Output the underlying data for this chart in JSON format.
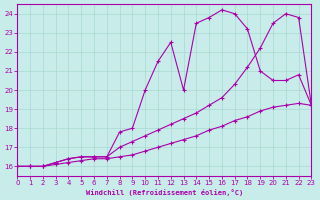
{
  "xlabel": "Windchill (Refroidissement éolien,°C)",
  "background_color": "#c8ecea",
  "grid_color": "#a8d8d0",
  "line_color": "#aa00aa",
  "marker": "+",
  "xlim": [
    0,
    23
  ],
  "ylim": [
    15.5,
    24.5
  ],
  "xticks": [
    0,
    1,
    2,
    3,
    4,
    5,
    6,
    7,
    8,
    9,
    10,
    11,
    12,
    13,
    14,
    15,
    16,
    17,
    18,
    19,
    20,
    21,
    22,
    23
  ],
  "yticks": [
    16,
    17,
    18,
    19,
    20,
    21,
    22,
    23,
    24
  ],
  "series1_x": [
    0,
    1,
    2,
    3,
    4,
    5,
    6,
    7,
    8,
    9,
    10,
    11,
    12,
    13,
    14,
    15,
    16,
    17,
    18,
    19,
    20,
    21,
    22,
    23
  ],
  "series1_y": [
    16.0,
    16.0,
    16.0,
    16.2,
    16.4,
    16.5,
    16.5,
    16.5,
    17.8,
    18.0,
    20.0,
    21.5,
    22.5,
    20.0,
    23.5,
    23.8,
    24.2,
    24.0,
    23.2,
    21.0,
    20.5,
    20.5,
    20.8,
    19.2
  ],
  "series2_x": [
    0,
    1,
    2,
    3,
    4,
    5,
    6,
    7,
    8,
    9,
    10,
    11,
    12,
    13,
    14,
    15,
    16,
    17,
    18,
    19,
    20,
    21,
    22,
    23
  ],
  "series2_y": [
    16.0,
    16.0,
    16.0,
    16.2,
    16.4,
    16.5,
    16.5,
    16.5,
    17.0,
    17.3,
    17.6,
    17.9,
    18.2,
    18.5,
    18.8,
    19.2,
    19.6,
    20.3,
    21.2,
    22.2,
    23.5,
    24.0,
    23.8,
    19.2
  ],
  "series3_x": [
    0,
    1,
    2,
    3,
    4,
    5,
    6,
    7,
    8,
    9,
    10,
    11,
    12,
    13,
    14,
    15,
    16,
    17,
    18,
    19,
    20,
    21,
    22,
    23
  ],
  "series3_y": [
    16.0,
    16.0,
    16.0,
    16.1,
    16.2,
    16.3,
    16.4,
    16.4,
    16.5,
    16.6,
    16.8,
    17.0,
    17.2,
    17.4,
    17.6,
    17.9,
    18.1,
    18.4,
    18.6,
    18.9,
    19.1,
    19.2,
    19.3,
    19.2
  ]
}
